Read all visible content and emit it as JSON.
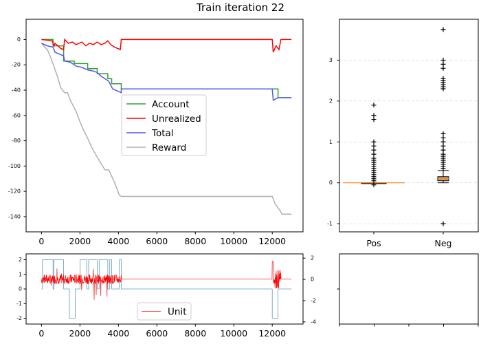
{
  "figure": {
    "title": "Train iteration 22"
  },
  "chart_data": [
    {
      "id": "main",
      "type": "line",
      "xlim": [
        -800,
        13600
      ],
      "ylim": [
        -152,
        16
      ],
      "x_ticks": [
        0,
        2000,
        4000,
        6000,
        8000,
        10000,
        12000
      ],
      "y_ticks": [
        0,
        -20,
        -40,
        -60,
        -80,
        -100,
        -120,
        -140
      ],
      "legend_placement": "center",
      "series": [
        {
          "name": "Account",
          "color": "#2ca02c",
          "points": [
            [
              0,
              0
            ],
            [
              600,
              0
            ],
            [
              600,
              -5
            ],
            [
              1150,
              -5
            ],
            [
              1150,
              -17
            ],
            [
              1700,
              -17
            ],
            [
              1700,
              -19
            ],
            [
              2400,
              -19
            ],
            [
              2400,
              -23
            ],
            [
              2900,
              -23
            ],
            [
              2900,
              -27
            ],
            [
              3450,
              -27
            ],
            [
              3450,
              -31
            ],
            [
              3650,
              -31
            ],
            [
              3650,
              -35
            ],
            [
              4150,
              -35
            ],
            [
              4150,
              -39
            ],
            [
              12300,
              -39
            ],
            [
              12300,
              -46
            ],
            [
              13000,
              -46
            ]
          ]
        },
        {
          "name": "Unrealized",
          "color": "#ff0000",
          "points": [
            [
              0,
              0
            ],
            [
              550,
              -1
            ],
            [
              650,
              -5
            ],
            [
              700,
              -3
            ],
            [
              1000,
              -7
            ],
            [
              1150,
              -8
            ],
            [
              1200,
              0
            ],
            [
              1400,
              -3
            ],
            [
              1600,
              -2
            ],
            [
              1800,
              -4
            ],
            [
              2100,
              -2
            ],
            [
              2300,
              -5
            ],
            [
              2500,
              -3
            ],
            [
              2700,
              -4
            ],
            [
              2900,
              -2
            ],
            [
              3100,
              -4
            ],
            [
              3300,
              -3
            ],
            [
              3450,
              -1
            ],
            [
              3600,
              -4
            ],
            [
              3800,
              -6
            ],
            [
              4100,
              -8
            ],
            [
              4150,
              0
            ],
            [
              12000,
              0
            ],
            [
              12050,
              -10
            ],
            [
              12200,
              -5
            ],
            [
              12350,
              -8
            ],
            [
              12450,
              0
            ],
            [
              13000,
              0
            ]
          ]
        },
        {
          "name": "Total",
          "color": "#5555ee",
          "points": [
            [
              0,
              -3
            ],
            [
              300,
              -5
            ],
            [
              600,
              -6
            ],
            [
              700,
              -10
            ],
            [
              1150,
              -13
            ],
            [
              1200,
              -17
            ],
            [
              1500,
              -18
            ],
            [
              1800,
              -21
            ],
            [
              2100,
              -22
            ],
            [
              2400,
              -24
            ],
            [
              2700,
              -25
            ],
            [
              2900,
              -26
            ],
            [
              3100,
              -29
            ],
            [
              3300,
              -31
            ],
            [
              3500,
              -33
            ],
            [
              3700,
              -39
            ],
            [
              4000,
              -41
            ],
            [
              4150,
              -42
            ],
            [
              4150,
              -39
            ],
            [
              12000,
              -39
            ],
            [
              12050,
              -48
            ],
            [
              12300,
              -46
            ],
            [
              13000,
              -46
            ]
          ]
        },
        {
          "name": "Reward",
          "color": "#b0b0b0",
          "points": [
            [
              0,
              -3
            ],
            [
              300,
              -8
            ],
            [
              500,
              -15
            ],
            [
              800,
              -28
            ],
            [
              1000,
              -38
            ],
            [
              1200,
              -42
            ],
            [
              1350,
              -42
            ],
            [
              1500,
              -48
            ],
            [
              1800,
              -57
            ],
            [
              2000,
              -65
            ],
            [
              2200,
              -72
            ],
            [
              2400,
              -78
            ],
            [
              2600,
              -85
            ],
            [
              2900,
              -93
            ],
            [
              3300,
              -103
            ],
            [
              3500,
              -103
            ],
            [
              3800,
              -113
            ],
            [
              4050,
              -123
            ],
            [
              4150,
              -124
            ],
            [
              12000,
              -124
            ],
            [
              12150,
              -130
            ],
            [
              12400,
              -135
            ],
            [
              12500,
              -138
            ],
            [
              13000,
              -138
            ]
          ]
        }
      ]
    },
    {
      "id": "box",
      "type": "box",
      "categories": [
        "Pos",
        "Neg"
      ],
      "ylim": [
        -1.2,
        4.0
      ],
      "y_ticks": [
        -1,
        0,
        1,
        2,
        3
      ],
      "grid": true,
      "boxes": [
        {
          "category": "Pos",
          "q1": 0.0,
          "median": 0.0,
          "q3": 0.0,
          "whisker_low": 0.0,
          "whisker_high": 0.0,
          "outliers": [
            -0.05,
            0.05,
            0.1,
            0.15,
            0.2,
            0.25,
            0.3,
            0.35,
            0.4,
            0.45,
            0.5,
            0.55,
            0.6,
            0.7,
            0.8,
            0.9,
            1.0,
            1.55,
            1.65,
            1.9
          ]
        },
        {
          "category": "Neg",
          "q1": 0.05,
          "median": 0.1,
          "q3": 0.15,
          "whisker_low": 0.0,
          "whisker_high": 0.3,
          "outliers": [
            -1.0,
            0.35,
            0.4,
            0.45,
            0.5,
            0.55,
            0.6,
            0.65,
            0.7,
            0.8,
            0.9,
            1.0,
            1.1,
            1.2,
            2.3,
            2.35,
            2.4,
            2.45,
            2.5,
            2.55,
            2.8,
            2.9,
            3.0,
            3.75
          ]
        }
      ]
    },
    {
      "id": "unit",
      "type": "line",
      "xlim": [
        -800,
        13600
      ],
      "ylim": [
        -2.4,
        2.4
      ],
      "y2lim": [
        -4.2,
        2.4
      ],
      "x_ticks": [
        0,
        2000,
        4000,
        6000,
        8000,
        10000,
        12000
      ],
      "y_ticks": [
        2,
        1,
        0,
        -1,
        -2
      ],
      "y2_ticks": [
        2,
        0,
        -2,
        -4
      ],
      "series": [
        {
          "name": "Unit",
          "color": "#ff0000",
          "axis": "right",
          "points": [
            [
              0,
              0
            ],
            [
              4150,
              0
            ],
            [
              4150,
              0
            ],
            [
              12000,
              0
            ],
            [
              12400,
              0
            ],
            [
              13000,
              0
            ]
          ]
        },
        {
          "name": "",
          "color": "#5b9bc4",
          "axis": "left",
          "points": [
            [
              0,
              0
            ],
            [
              50,
              0
            ],
            [
              50,
              2
            ],
            [
              600,
              2
            ],
            [
              600,
              0
            ],
            [
              650,
              0
            ],
            [
              650,
              2
            ],
            [
              1150,
              2
            ],
            [
              1150,
              0
            ],
            [
              1450,
              0
            ],
            [
              1450,
              -2
            ],
            [
              1750,
              -2
            ],
            [
              1750,
              0
            ],
            [
              2000,
              0
            ],
            [
              2000,
              2
            ],
            [
              2350,
              2
            ],
            [
              2350,
              0
            ],
            [
              2450,
              0
            ],
            [
              2450,
              2
            ],
            [
              2900,
              2
            ],
            [
              2900,
              0
            ],
            [
              3000,
              0
            ],
            [
              3000,
              2
            ],
            [
              3450,
              2
            ],
            [
              3450,
              0
            ],
            [
              3550,
              0
            ],
            [
              3550,
              2
            ],
            [
              3650,
              2
            ],
            [
              3650,
              0
            ],
            [
              4050,
              0
            ],
            [
              4050,
              2
            ],
            [
              4150,
              2
            ],
            [
              4150,
              0
            ],
            [
              12000,
              0
            ],
            [
              12000,
              -2
            ],
            [
              12300,
              -2
            ],
            [
              12300,
              0
            ],
            [
              13000,
              0
            ]
          ]
        }
      ]
    },
    {
      "id": "empty",
      "type": "empty"
    }
  ]
}
